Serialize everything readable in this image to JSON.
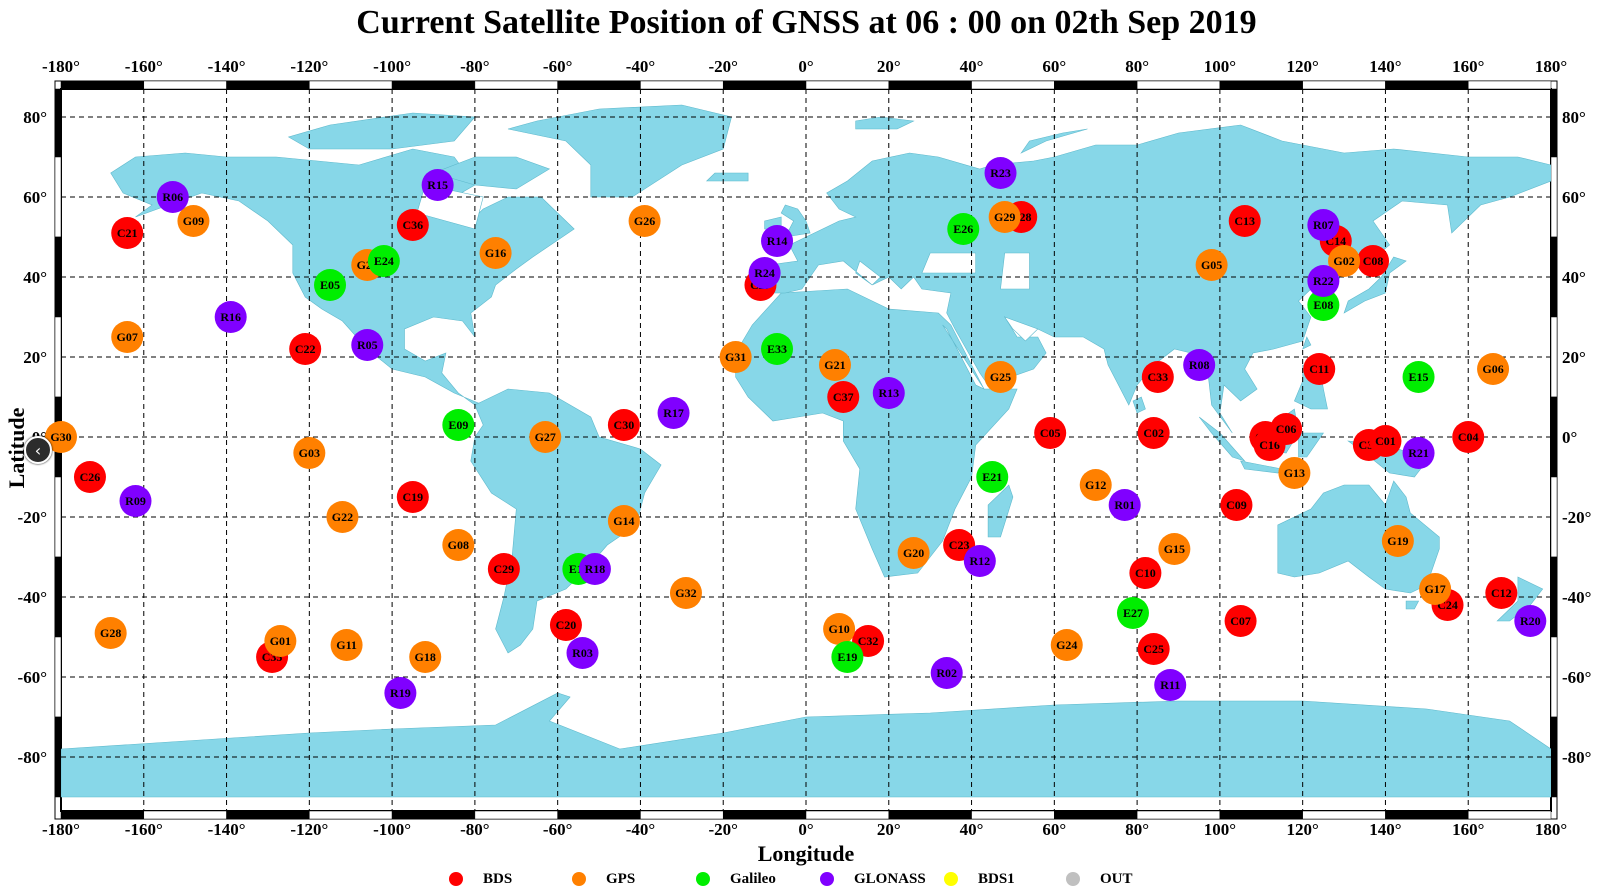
{
  "title": "Current Satellite Position of GNSS at 06 : 00 on 02th Sep 2019",
  "x_axis_label": "Longitude",
  "y_axis_label": "Latitude",
  "x_ticks": [
    "-180°",
    "-160°",
    "-140°",
    "-120°",
    "-100°",
    "-80°",
    "-60°",
    "-40°",
    "-20°",
    "0°",
    "20°",
    "40°",
    "60°",
    "80°",
    "100°",
    "120°",
    "140°",
    "160°",
    "180°"
  ],
  "y_ticks": [
    "80°",
    "60°",
    "40°",
    "20°",
    "0°",
    "-20°",
    "-40°",
    "-60°",
    "-80°"
  ],
  "colors": {
    "BDS": "#ff0000",
    "GPS": "#ff8000",
    "Galileo": "#00ee00",
    "GLONASS": "#8000ff",
    "BDS1": "#ffff00",
    "OUT": "#c0c0c0",
    "land": "#87d7e8",
    "ocean": "#ffffff"
  },
  "legend": [
    {
      "name": "BDS",
      "color": "#ff0000"
    },
    {
      "name": "GPS",
      "color": "#ff8000"
    },
    {
      "name": "Galileo",
      "color": "#00ee00"
    },
    {
      "name": "GLONASS",
      "color": "#8000ff"
    },
    {
      "name": "BDS1",
      "color": "#ffff00"
    },
    {
      "name": "OUT",
      "color": "#c0c0c0"
    }
  ],
  "nav_icon": "chevron-left-icon",
  "satellites": [
    {
      "id": "C21",
      "sys": "BDS",
      "lon": -164,
      "lat": 51
    },
    {
      "id": "C22",
      "sys": "BDS",
      "lon": -121,
      "lat": 22
    },
    {
      "id": "C26",
      "sys": "BDS",
      "lon": -173,
      "lat": -10
    },
    {
      "id": "C35",
      "sys": "BDS",
      "lon": -129,
      "lat": -55
    },
    {
      "id": "C36",
      "sys": "BDS",
      "lon": -95,
      "lat": 53
    },
    {
      "id": "C19",
      "sys": "BDS",
      "lon": -95,
      "lat": -15
    },
    {
      "id": "C29",
      "sys": "BDS",
      "lon": -73,
      "lat": -33
    },
    {
      "id": "C30",
      "sys": "BDS",
      "lon": -44,
      "lat": 3
    },
    {
      "id": "C20",
      "sys": "BDS",
      "lon": -58,
      "lat": -47
    },
    {
      "id": "C27",
      "sys": "BDS",
      "lon": -11,
      "lat": 38
    },
    {
      "id": "C37",
      "sys": "BDS",
      "lon": 9,
      "lat": 10
    },
    {
      "id": "C32",
      "sys": "BDS",
      "lon": 15,
      "lat": -51
    },
    {
      "id": "C23",
      "sys": "BDS",
      "lon": 37,
      "lat": -27
    },
    {
      "id": "C28",
      "sys": "BDS",
      "lon": 52,
      "lat": 55
    },
    {
      "id": "C05",
      "sys": "BDS",
      "lon": 59,
      "lat": 1
    },
    {
      "id": "C33",
      "sys": "BDS",
      "lon": 85,
      "lat": 15
    },
    {
      "id": "C02",
      "sys": "BDS",
      "lon": 84,
      "lat": 1
    },
    {
      "id": "C10",
      "sys": "BDS",
      "lon": 82,
      "lat": -34
    },
    {
      "id": "C25",
      "sys": "BDS",
      "lon": 84,
      "lat": -53
    },
    {
      "id": "C13",
      "sys": "BDS",
      "lon": 106,
      "lat": 54
    },
    {
      "id": "C09",
      "sys": "BDS",
      "lon": 104,
      "lat": -17
    },
    {
      "id": "C07",
      "sys": "BDS",
      "lon": 105,
      "lat": -46
    },
    {
      "id": "C03",
      "sys": "BDS",
      "lon": 111,
      "lat": 0
    },
    {
      "id": "C16",
      "sys": "BDS",
      "lon": 112,
      "lat": -2
    },
    {
      "id": "C06",
      "sys": "BDS",
      "lon": 116,
      "lat": 2
    },
    {
      "id": "C11",
      "sys": "BDS",
      "lon": 124,
      "lat": 17
    },
    {
      "id": "C14",
      "sys": "BDS",
      "lon": 128,
      "lat": 49
    },
    {
      "id": "C08",
      "sys": "BDS",
      "lon": 137,
      "lat": 44
    },
    {
      "id": "C34",
      "sys": "BDS",
      "lon": 136,
      "lat": -2
    },
    {
      "id": "C01",
      "sys": "BDS",
      "lon": 140,
      "lat": -1
    },
    {
      "id": "C04",
      "sys": "BDS",
      "lon": 160,
      "lat": 0
    },
    {
      "id": "C12",
      "sys": "BDS",
      "lon": 168,
      "lat": -39
    },
    {
      "id": "C24",
      "sys": "BDS",
      "lon": 155,
      "lat": -42
    },
    {
      "id": "G09",
      "sys": "GPS",
      "lon": -148,
      "lat": 54
    },
    {
      "id": "G07",
      "sys": "GPS",
      "lon": -164,
      "lat": 25
    },
    {
      "id": "G28",
      "sys": "GPS",
      "lon": -168,
      "lat": -49
    },
    {
      "id": "G01",
      "sys": "GPS",
      "lon": -127,
      "lat": -51
    },
    {
      "id": "G03",
      "sys": "GPS",
      "lon": -120,
      "lat": -4
    },
    {
      "id": "G22",
      "sys": "GPS",
      "lon": -112,
      "lat": -20
    },
    {
      "id": "G11",
      "sys": "GPS",
      "lon": -111,
      "lat": -52
    },
    {
      "id": "G23",
      "sys": "GPS",
      "lon": -106,
      "lat": 43
    },
    {
      "id": "G16",
      "sys": "GPS",
      "lon": -75,
      "lat": 46
    },
    {
      "id": "G18",
      "sys": "GPS",
      "lon": -92,
      "lat": -55
    },
    {
      "id": "G08",
      "sys": "GPS",
      "lon": -84,
      "lat": -27
    },
    {
      "id": "G27",
      "sys": "GPS",
      "lon": -63,
      "lat": 0
    },
    {
      "id": "G26",
      "sys": "GPS",
      "lon": -39,
      "lat": 54
    },
    {
      "id": "G14",
      "sys": "GPS",
      "lon": -44,
      "lat": -21
    },
    {
      "id": "G32",
      "sys": "GPS",
      "lon": -29,
      "lat": -39
    },
    {
      "id": "G31",
      "sys": "GPS",
      "lon": -17,
      "lat": 20
    },
    {
      "id": "G21",
      "sys": "GPS",
      "lon": 7,
      "lat": 18
    },
    {
      "id": "G10",
      "sys": "GPS",
      "lon": 8,
      "lat": -48
    },
    {
      "id": "G20",
      "sys": "GPS",
      "lon": 26,
      "lat": -29
    },
    {
      "id": "G25",
      "sys": "GPS",
      "lon": 47,
      "lat": 15
    },
    {
      "id": "G29",
      "sys": "GPS",
      "lon": 48,
      "lat": 55
    },
    {
      "id": "G12",
      "sys": "GPS",
      "lon": 70,
      "lat": -12
    },
    {
      "id": "G24",
      "sys": "GPS",
      "lon": 63,
      "lat": -52
    },
    {
      "id": "G05",
      "sys": "GPS",
      "lon": 98,
      "lat": 43
    },
    {
      "id": "G15",
      "sys": "GPS",
      "lon": 89,
      "lat": -28
    },
    {
      "id": "G13",
      "sys": "GPS",
      "lon": 118,
      "lat": -9
    },
    {
      "id": "G02",
      "sys": "GPS",
      "lon": 130,
      "lat": 44
    },
    {
      "id": "G19",
      "sys": "GPS",
      "lon": 143,
      "lat": -26
    },
    {
      "id": "G17",
      "sys": "GPS",
      "lon": 152,
      "lat": -38
    },
    {
      "id": "G06",
      "sys": "GPS",
      "lon": 166,
      "lat": 17
    },
    {
      "id": "G30",
      "sys": "GPS",
      "lon": -180,
      "lat": 0
    },
    {
      "id": "E05",
      "sys": "Galileo",
      "lon": -115,
      "lat": 38
    },
    {
      "id": "E24",
      "sys": "Galileo",
      "lon": -102,
      "lat": 44
    },
    {
      "id": "E09",
      "sys": "Galileo",
      "lon": -84,
      "lat": 3
    },
    {
      "id": "E11",
      "sys": "Galileo",
      "lon": -55,
      "lat": -33
    },
    {
      "id": "E33",
      "sys": "Galileo",
      "lon": -7,
      "lat": 22
    },
    {
      "id": "E19",
      "sys": "Galileo",
      "lon": 10,
      "lat": -55
    },
    {
      "id": "E26",
      "sys": "Galileo",
      "lon": 38,
      "lat": 52
    },
    {
      "id": "E21",
      "sys": "Galileo",
      "lon": 45,
      "lat": -10
    },
    {
      "id": "E27",
      "sys": "Galileo",
      "lon": 79,
      "lat": -44
    },
    {
      "id": "E08",
      "sys": "Galileo",
      "lon": 125,
      "lat": 33
    },
    {
      "id": "E15",
      "sys": "Galileo",
      "lon": 148,
      "lat": 15
    },
    {
      "id": "R06",
      "sys": "GLONASS",
      "lon": -153,
      "lat": 60
    },
    {
      "id": "R16",
      "sys": "GLONASS",
      "lon": -139,
      "lat": 30
    },
    {
      "id": "R09",
      "sys": "GLONASS",
      "lon": -162,
      "lat": -16
    },
    {
      "id": "R15",
      "sys": "GLONASS",
      "lon": -89,
      "lat": 63
    },
    {
      "id": "R05",
      "sys": "GLONASS",
      "lon": -106,
      "lat": 23
    },
    {
      "id": "R19",
      "sys": "GLONASS",
      "lon": -98,
      "lat": -64
    },
    {
      "id": "R18",
      "sys": "GLONASS",
      "lon": -51,
      "lat": -33
    },
    {
      "id": "R03",
      "sys": "GLONASS",
      "lon": -54,
      "lat": -54
    },
    {
      "id": "R17",
      "sys": "GLONASS",
      "lon": -32,
      "lat": 6
    },
    {
      "id": "R14",
      "sys": "GLONASS",
      "lon": -7,
      "lat": 49
    },
    {
      "id": "R24",
      "sys": "GLONASS",
      "lon": -10,
      "lat": 41
    },
    {
      "id": "R13",
      "sys": "GLONASS",
      "lon": 20,
      "lat": 11
    },
    {
      "id": "R02",
      "sys": "GLONASS",
      "lon": 34,
      "lat": -59
    },
    {
      "id": "R12",
      "sys": "GLONASS",
      "lon": 42,
      "lat": -31
    },
    {
      "id": "R23",
      "sys": "GLONASS",
      "lon": 47,
      "lat": 66
    },
    {
      "id": "R08",
      "sys": "GLONASS",
      "lon": 95,
      "lat": 18
    },
    {
      "id": "R01",
      "sys": "GLONASS",
      "lon": 77,
      "lat": -17
    },
    {
      "id": "R11",
      "sys": "GLONASS",
      "lon": 88,
      "lat": -62
    },
    {
      "id": "R07",
      "sys": "GLONASS",
      "lon": 125,
      "lat": 53
    },
    {
      "id": "R22",
      "sys": "GLONASS",
      "lon": 125,
      "lat": 39
    },
    {
      "id": "R21",
      "sys": "GLONASS",
      "lon": 148,
      "lat": -4
    },
    {
      "id": "R20",
      "sys": "GLONASS",
      "lon": 175,
      "lat": -46
    }
  ]
}
